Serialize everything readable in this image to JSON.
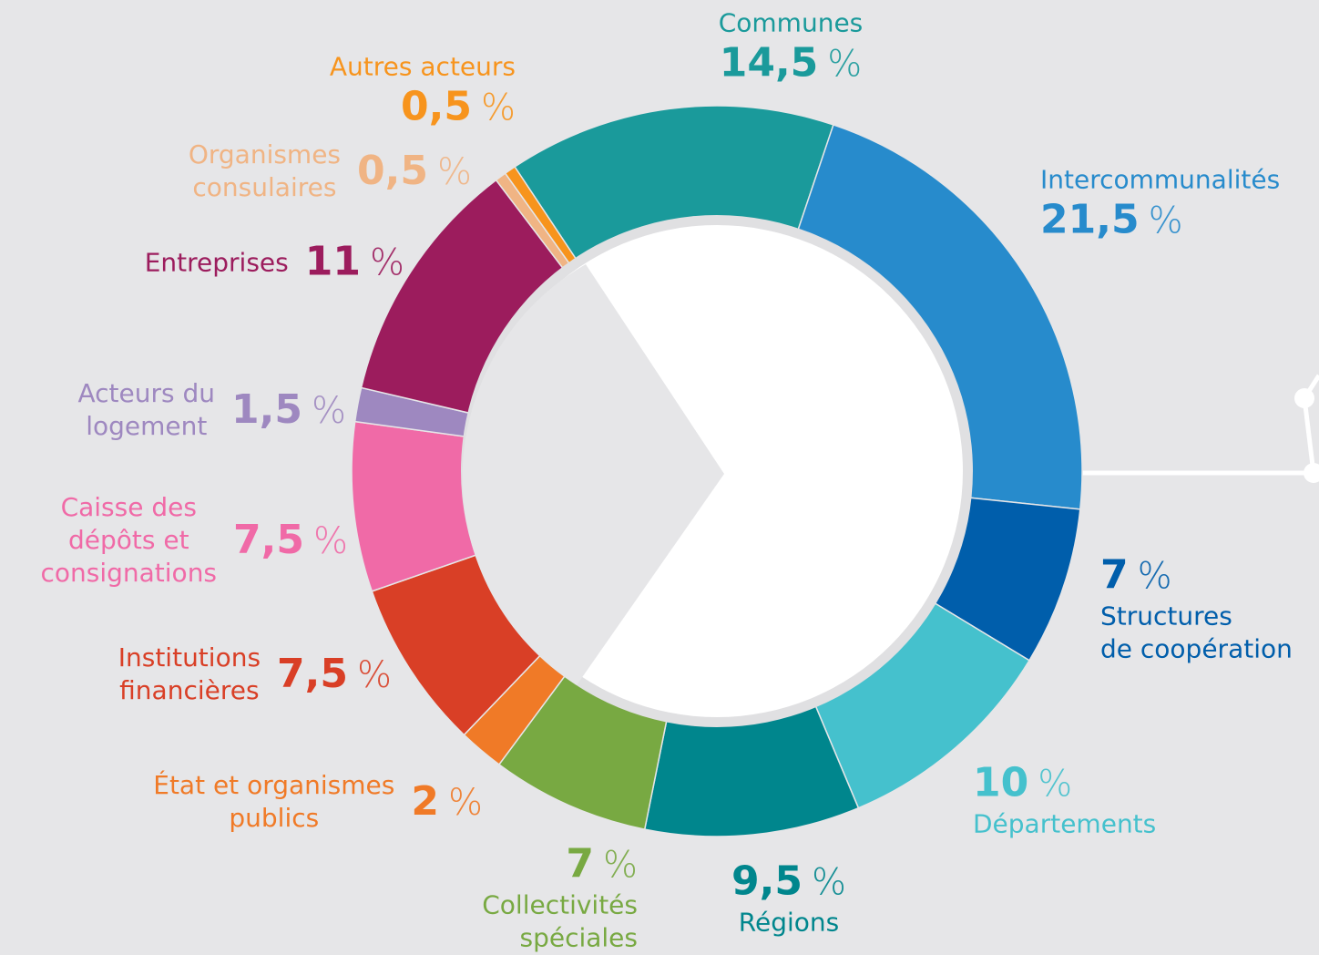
{
  "chart_data": {
    "type": "donut",
    "categories": [
      "Communes",
      "Intercommunalités",
      "Structures\nde coopération",
      "Départements",
      "Régions",
      "Collectivités\nspéciales",
      "État et organismes\npublics",
      "Institutions\nfinancières",
      "Caisse des\ndépôts et\nconsignations",
      "Acteurs du\nlogement",
      "Entreprises",
      "Organismes\nconsulaires",
      "Autres acteurs"
    ],
    "values": [
      14.5,
      21.5,
      7,
      10,
      9.5,
      7,
      2,
      7.5,
      7.5,
      1.5,
      11,
      0.5,
      0.5
    ],
    "value_labels": [
      "14,5",
      "21,5",
      "7",
      "10",
      "9,5",
      "7",
      "2",
      "7,5",
      "7,5",
      "1,5",
      "11",
      "0,5",
      "0,5"
    ],
    "unit": "%",
    "colors": [
      "#1a9a9b",
      "#278bcc",
      "#005eab",
      "#45c1cd",
      "#00868d",
      "#78a942",
      "#f07a27",
      "#d93f26",
      "#f06aa7",
      "#9e88c0",
      "#9c1c5d",
      "#f0b484",
      "#f7941d"
    ]
  }
}
